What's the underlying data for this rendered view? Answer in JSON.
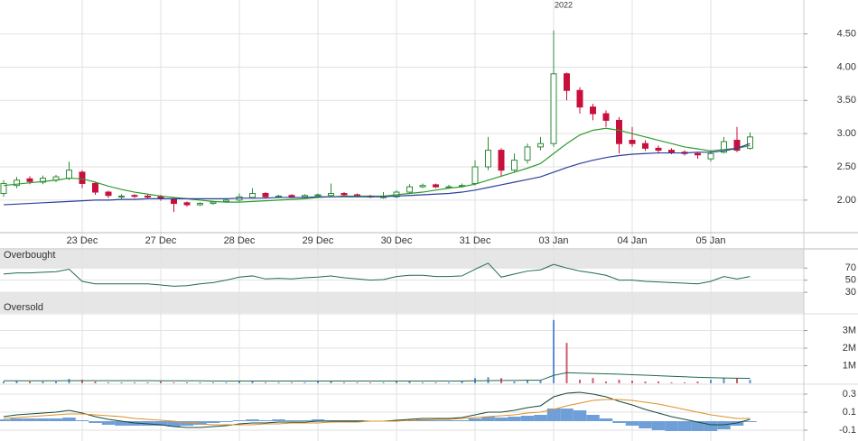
{
  "chart_data": [
    {
      "type": "candlestick",
      "annotation": "2022",
      "categories": [
        null,
        null,
        null,
        null,
        null,
        null,
        "23 Dec",
        null,
        null,
        null,
        null,
        null,
        "27 Dec",
        null,
        null,
        null,
        null,
        null,
        "28 Dec",
        null,
        null,
        null,
        null,
        null,
        "29 Dec",
        null,
        null,
        null,
        null,
        null,
        "30 Dec",
        null,
        null,
        null,
        null,
        null,
        "31 Dec",
        null,
        null,
        null,
        null,
        null,
        "03 Jan",
        null,
        null,
        null,
        null,
        null,
        "04 Jan",
        null,
        null,
        null,
        null,
        null,
        "05 Jan",
        null,
        null,
        null
      ],
      "open": [
        2.1,
        2.22,
        2.32,
        2.27,
        2.3,
        2.33,
        2.42,
        2.25,
        2.12,
        2.05,
        2.07,
        2.06,
        2.05,
        2.02,
        1.96,
        1.93,
        1.95,
        1.98,
        2.0,
        2.04,
        2.1,
        2.05,
        2.07,
        2.05,
        2.07,
        2.07,
        2.1,
        2.08,
        2.06,
        2.04,
        2.05,
        2.12,
        2.2,
        2.23,
        2.19,
        2.21,
        2.25,
        2.5,
        2.75,
        2.45,
        2.6,
        2.8,
        2.85,
        3.9,
        3.65,
        3.4,
        3.3,
        3.2,
        2.9,
        2.85,
        2.78,
        2.75,
        2.72,
        2.7,
        2.62,
        2.72,
        2.9,
        2.78
      ],
      "high": [
        2.3,
        2.35,
        2.36,
        2.37,
        2.38,
        2.58,
        2.45,
        2.27,
        2.14,
        2.09,
        2.09,
        2.08,
        2.08,
        2.04,
        1.98,
        1.97,
        1.99,
        2.02,
        2.1,
        2.18,
        2.12,
        2.08,
        2.09,
        2.09,
        2.1,
        2.25,
        2.12,
        2.1,
        2.08,
        2.12,
        2.15,
        2.24,
        2.25,
        2.25,
        2.23,
        2.25,
        2.6,
        2.95,
        2.78,
        2.7,
        2.85,
        2.95,
        4.55,
        3.92,
        3.7,
        3.45,
        3.35,
        3.25,
        3.1,
        2.9,
        2.82,
        2.78,
        2.75,
        2.73,
        2.75,
        2.95,
        3.1,
        3.02
      ],
      "low": [
        2.05,
        2.18,
        2.24,
        2.24,
        2.27,
        2.3,
        2.18,
        2.08,
        2.03,
        2.02,
        2.03,
        2.02,
        1.99,
        1.82,
        1.9,
        1.91,
        1.93,
        1.96,
        1.98,
        2.02,
        2.03,
        2.03,
        2.03,
        2.03,
        2.05,
        2.05,
        2.06,
        2.04,
        2.03,
        2.02,
        2.03,
        2.1,
        2.18,
        2.18,
        2.17,
        2.19,
        2.22,
        2.45,
        2.35,
        2.42,
        2.55,
        2.75,
        2.8,
        3.5,
        3.3,
        3.2,
        3.1,
        2.7,
        2.8,
        2.74,
        2.7,
        2.69,
        2.67,
        2.62,
        2.58,
        2.7,
        2.72,
        2.76
      ],
      "close": [
        2.25,
        2.3,
        2.28,
        2.33,
        2.35,
        2.45,
        2.25,
        2.12,
        2.07,
        2.06,
        2.06,
        2.05,
        2.02,
        1.95,
        1.93,
        1.95,
        1.97,
        2.0,
        2.05,
        2.1,
        2.05,
        2.06,
        2.05,
        2.07,
        2.08,
        2.1,
        2.08,
        2.06,
        2.05,
        2.05,
        2.12,
        2.2,
        2.22,
        2.2,
        2.2,
        2.22,
        2.5,
        2.75,
        2.45,
        2.6,
        2.8,
        2.85,
        3.9,
        3.65,
        3.4,
        3.3,
        3.2,
        2.85,
        2.85,
        2.78,
        2.75,
        2.72,
        2.7,
        2.68,
        2.7,
        2.88,
        2.75,
        2.95
      ],
      "up_color": "#2e8b3a",
      "down_color": "#c8103c",
      "series": [
        {
          "color": "#2e9b2e",
          "values": [
            2.22,
            2.24,
            2.26,
            2.28,
            2.3,
            2.33,
            2.32,
            2.27,
            2.21,
            2.16,
            2.12,
            2.09,
            2.06,
            2.04,
            2.02,
            2.0,
            1.98,
            1.97,
            1.97,
            1.98,
            1.99,
            2.0,
            2.01,
            2.02,
            2.04,
            2.05,
            2.06,
            2.06,
            2.06,
            2.06,
            2.08,
            2.1,
            2.12,
            2.15,
            2.18,
            2.2,
            2.24,
            2.3,
            2.36,
            2.42,
            2.48,
            2.55,
            2.7,
            2.85,
            2.98,
            3.05,
            3.08,
            3.05,
            3.0,
            2.95,
            2.9,
            2.85,
            2.8,
            2.77,
            2.74,
            2.76,
            2.78,
            2.82
          ]
        },
        {
          "color": "#2b3f9b",
          "values": [
            1.93,
            1.94,
            1.95,
            1.96,
            1.97,
            1.98,
            1.99,
            2.0,
            2.0,
            2.01,
            2.01,
            2.02,
            2.02,
            2.02,
            2.02,
            2.02,
            2.02,
            2.02,
            2.03,
            2.03,
            2.03,
            2.04,
            2.04,
            2.04,
            2.05,
            2.05,
            2.05,
            2.05,
            2.05,
            2.05,
            2.06,
            2.07,
            2.08,
            2.09,
            2.1,
            2.12,
            2.15,
            2.19,
            2.23,
            2.27,
            2.31,
            2.35,
            2.42,
            2.49,
            2.55,
            2.6,
            2.64,
            2.67,
            2.69,
            2.7,
            2.71,
            2.71,
            2.71,
            2.72,
            2.72,
            2.74,
            2.78,
            2.85
          ]
        }
      ],
      "ylim": [
        1.51,
        5.01
      ],
      "yticks": [
        {
          "value": 4.5,
          "label": "4.50"
        },
        {
          "value": 4,
          "label": "4.00"
        },
        {
          "value": 3.5,
          "label": "3.50"
        },
        {
          "value": 3,
          "label": "3.00"
        },
        {
          "value": 2.5,
          "label": "2.50"
        },
        {
          "value": 2,
          "label": "2.00"
        }
      ],
      "grid": true
    },
    {
      "type": "line",
      "upper_label": "Overbought",
      "lower_label": "Oversold",
      "color": "#1f6b4b",
      "values": [
        60,
        62,
        62,
        63,
        64,
        68,
        48,
        44,
        44,
        44,
        44,
        44,
        42,
        40,
        41,
        44,
        46,
        50,
        55,
        57,
        52,
        53,
        52,
        54,
        55,
        57,
        54,
        52,
        50,
        51,
        56,
        58,
        58,
        56,
        56,
        57,
        68,
        78,
        55,
        60,
        65,
        67,
        76,
        70,
        65,
        62,
        58,
        50,
        50,
        48,
        47,
        46,
        45,
        44,
        48,
        56,
        52,
        56
      ],
      "ylim": [
        -4,
        100
      ],
      "yticks": [
        70,
        50,
        30
      ]
    },
    {
      "type": "bar",
      "up_color": "#5b8ed0",
      "down_color": "#d05b6e",
      "values": [
        100000,
        150000,
        100000,
        100000,
        100000,
        250000,
        200000,
        100000,
        50000,
        50000,
        50000,
        50000,
        100000,
        50000,
        50000,
        50000,
        50000,
        50000,
        100000,
        150000,
        50000,
        50000,
        50000,
        50000,
        100000,
        150000,
        50000,
        50000,
        50000,
        50000,
        100000,
        100000,
        50000,
        50000,
        50000,
        100000,
        300000,
        350000,
        300000,
        100000,
        200000,
        150000,
        3600000,
        2300000,
        200000,
        300000,
        100000,
        200000,
        150000,
        100000,
        100000,
        50000,
        50000,
        100000,
        200000,
        300000,
        300000,
        200000
      ],
      "series": [
        {
          "color": "#1f6b4b",
          "values": [
            140000,
            140000,
            140000,
            140000,
            140000,
            150000,
            150000,
            150000,
            150000,
            150000,
            150000,
            150000,
            140000,
            140000,
            140000,
            140000,
            130000,
            130000,
            130000,
            130000,
            130000,
            130000,
            130000,
            130000,
            130000,
            130000,
            130000,
            130000,
            130000,
            130000,
            130000,
            130000,
            130000,
            130000,
            130000,
            130000,
            140000,
            150000,
            160000,
            160000,
            170000,
            170000,
            450000,
            600000,
            580000,
            560000,
            540000,
            520000,
            490000,
            460000,
            430000,
            400000,
            370000,
            340000,
            320000,
            300000,
            290000,
            280000
          ]
        }
      ],
      "ylim": [
        0,
        3900000
      ],
      "yticks": [
        {
          "value": 3000000,
          "label": "3M"
        },
        {
          "value": 2000000,
          "label": "2M"
        },
        {
          "value": 1000000,
          "label": "1M"
        }
      ]
    },
    {
      "type": "macd",
      "series": [
        {
          "color": "#1a4c3a",
          "values": [
            0.05,
            0.07,
            0.08,
            0.09,
            0.1,
            0.12,
            0.09,
            0.05,
            0.02,
            0.0,
            -0.02,
            -0.03,
            -0.04,
            -0.06,
            -0.07,
            -0.07,
            -0.06,
            -0.05,
            -0.03,
            -0.02,
            -0.02,
            -0.01,
            -0.01,
            -0.01,
            0.0,
            0.0,
            0.0,
            0.0,
            0.0,
            0.0,
            0.01,
            0.02,
            0.03,
            0.03,
            0.03,
            0.04,
            0.07,
            0.1,
            0.1,
            0.12,
            0.15,
            0.17,
            0.27,
            0.31,
            0.32,
            0.3,
            0.27,
            0.22,
            0.18,
            0.13,
            0.09,
            0.05,
            0.02,
            -0.01,
            -0.04,
            -0.04,
            -0.02,
            0.02
          ]
        },
        {
          "color": "#e0902a",
          "values": [
            0.03,
            0.04,
            0.05,
            0.06,
            0.07,
            0.08,
            0.08,
            0.07,
            0.06,
            0.05,
            0.03,
            0.02,
            0.01,
            0.0,
            -0.02,
            -0.03,
            -0.04,
            -0.04,
            -0.04,
            -0.04,
            -0.03,
            -0.03,
            -0.02,
            -0.02,
            -0.02,
            -0.01,
            -0.01,
            -0.01,
            0.0,
            0.0,
            0.0,
            0.01,
            0.01,
            0.02,
            0.02,
            0.03,
            0.04,
            0.05,
            0.06,
            0.07,
            0.09,
            0.1,
            0.13,
            0.17,
            0.2,
            0.23,
            0.24,
            0.24,
            0.23,
            0.21,
            0.19,
            0.16,
            0.13,
            0.1,
            0.07,
            0.05,
            0.03,
            0.03
          ]
        }
      ],
      "histogram": {
        "color": "#6f9fd8",
        "values": [
          0.02,
          0.03,
          0.03,
          0.03,
          0.03,
          0.04,
          0.01,
          -0.02,
          -0.04,
          -0.05,
          -0.05,
          -0.05,
          -0.05,
          -0.06,
          -0.05,
          -0.04,
          -0.02,
          -0.01,
          0.01,
          0.02,
          0.01,
          0.02,
          0.01,
          0.01,
          0.02,
          0.01,
          0.01,
          0.01,
          0,
          0,
          0.01,
          0.01,
          0.02,
          0.01,
          0.01,
          0.01,
          0.03,
          0.05,
          0.04,
          0.05,
          0.06,
          0.07,
          0.14,
          0.14,
          0.12,
          0.07,
          0.03,
          -0.02,
          -0.05,
          -0.08,
          -0.1,
          -0.11,
          -0.11,
          -0.11,
          -0.11,
          -0.09,
          -0.05,
          -0.01
        ]
      },
      "ylim": [
        -0.22,
        0.4
      ],
      "yticks": [
        0.3,
        0.1,
        -0.1
      ]
    }
  ]
}
